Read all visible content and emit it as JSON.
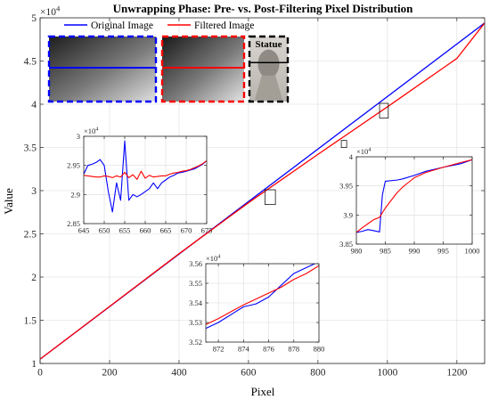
{
  "figure": {
    "title": "Unwrapping Phase: Pre- vs. Post-Filtering Pixel Distribution",
    "xlabel": "Pixel",
    "ylabel": "Value"
  },
  "chart_data": [
    {
      "id": "main",
      "type": "line",
      "title": "Unwrapping Phase: Pre- vs. Post-Filtering Pixel Distribution",
      "xlabel": "Pixel",
      "ylabel": "Value",
      "xlim": [
        0,
        1280
      ],
      "ylim": [
        10000,
        50000
      ],
      "xticks": [
        0,
        200,
        400,
        600,
        800,
        1000,
        1200
      ],
      "yticks": [
        10000,
        15000,
        20000,
        25000,
        30000,
        35000,
        40000,
        45000,
        50000
      ],
      "ytick_labels": [
        "1",
        "1.5",
        "2",
        "2.5",
        "3",
        "3.5",
        "4",
        "4.5",
        "5"
      ],
      "y_exponent": "×10^4",
      "grid": true,
      "legend": "top-left",
      "series": [
        {
          "name": "Original Image",
          "color": "#0000ff",
          "x": [
            0,
            1280
          ],
          "y": [
            10500,
            49400
          ]
        },
        {
          "name": "Filtered Image",
          "color": "#ff0000",
          "x": [
            0,
            200,
            400,
            600,
            800,
            1000,
            1200,
            1280
          ],
          "y": [
            10500,
            16600,
            22700,
            28600,
            34200,
            39700,
            45300,
            49400
          ]
        }
      ],
      "zoom_boxes": [
        {
          "xlim": [
            650,
            675
          ],
          "ylim": [
            28500,
            30000
          ]
        },
        {
          "xlim": [
            870,
            880
          ],
          "ylim": [
            35200,
            35600
          ]
        },
        {
          "xlim": [
            980,
            1000
          ],
          "ylim": [
            38500,
            40000
          ]
        }
      ],
      "images": [
        {
          "name": "original-image-thumb",
          "border": "#0000ff"
        },
        {
          "name": "filtered-image-thumb",
          "border": "#ff0000"
        },
        {
          "name": "statue-image-thumb",
          "border": "#000000",
          "label": "Statue"
        }
      ]
    },
    {
      "id": "inset1",
      "type": "line",
      "xlim": [
        645,
        675
      ],
      "ylim": [
        28500,
        30000
      ],
      "xticks": [
        645,
        650,
        655,
        660,
        665,
        670,
        675
      ],
      "yticks": [
        28500,
        29000,
        29500,
        30000
      ],
      "ytick_labels": [
        "2.85",
        "2.9",
        "2.95",
        "3"
      ],
      "y_exponent": "×10^4",
      "grid": true,
      "series": [
        {
          "name": "Original Image",
          "color": "#0000ff",
          "x": [
            645,
            646,
            647,
            648,
            649,
            650,
            651,
            652,
            653,
            654,
            655,
            656,
            657,
            658,
            659,
            660,
            661,
            662,
            663,
            664,
            665,
            666,
            667,
            668,
            669,
            670,
            671,
            672,
            673,
            674,
            675
          ],
          "y": [
            29350,
            29500,
            29520,
            29550,
            29600,
            29500,
            29050,
            28700,
            29200,
            28900,
            29920,
            28900,
            29000,
            28960,
            29000,
            29050,
            29100,
            29200,
            29100,
            29200,
            29250,
            29300,
            29330,
            29370,
            29380,
            29400,
            29420,
            29440,
            29480,
            29520,
            29580
          ]
        },
        {
          "name": "Filtered Image",
          "color": "#ff0000",
          "x": [
            645,
            646,
            647,
            648,
            649,
            650,
            651,
            652,
            653,
            654,
            655,
            656,
            657,
            658,
            659,
            660,
            661,
            662,
            663,
            664,
            665,
            666,
            667,
            668,
            669,
            670,
            671,
            672,
            673,
            674,
            675
          ],
          "y": [
            29330,
            29320,
            29310,
            29300,
            29300,
            29320,
            29310,
            29290,
            29320,
            29300,
            29380,
            29290,
            29340,
            29260,
            29400,
            29280,
            29330,
            29300,
            29310,
            29320,
            29320,
            29350,
            29370,
            29380,
            29400,
            29410,
            29430,
            29460,
            29490,
            29530,
            29580
          ]
        }
      ]
    },
    {
      "id": "inset2",
      "type": "line",
      "xlim": [
        871,
        880
      ],
      "ylim": [
        35200,
        35600
      ],
      "xticks": [
        872,
        874,
        876,
        878,
        880
      ],
      "yticks": [
        35200,
        35300,
        35400,
        35500,
        35600
      ],
      "ytick_labels": [
        "3.52",
        "3.53",
        "3.54",
        "3.55",
        "3.56"
      ],
      "y_exponent": "×10^4",
      "grid": true,
      "series": [
        {
          "name": "Original Image",
          "color": "#0000ff",
          "x": [
            871,
            872,
            873,
            874,
            875,
            876,
            877,
            878,
            879,
            880
          ],
          "y": [
            35270,
            35300,
            35340,
            35380,
            35395,
            35430,
            35490,
            35550,
            35580,
            35610
          ]
        },
        {
          "name": "Filtered Image",
          "color": "#ff0000",
          "x": [
            871,
            872,
            873,
            874,
            875,
            876,
            877,
            878,
            879,
            880
          ],
          "y": [
            35290,
            35320,
            35355,
            35390,
            35420,
            35450,
            35480,
            35520,
            35550,
            35590
          ]
        }
      ]
    },
    {
      "id": "inset3",
      "type": "line",
      "xlim": [
        980,
        1000
      ],
      "ylim": [
        38500,
        40000
      ],
      "xticks": [
        980,
        985,
        990,
        995,
        1000
      ],
      "yticks": [
        38500,
        39000,
        39500,
        40000
      ],
      "ytick_labels": [
        "3.85",
        "3.9",
        "3.95",
        "4"
      ],
      "y_exponent": "×10^4",
      "grid": true,
      "series": [
        {
          "name": "Original Image",
          "color": "#0000ff",
          "x": [
            980,
            981,
            982,
            983,
            984,
            984.5,
            985,
            987,
            988,
            990,
            992,
            995,
            998,
            1000
          ],
          "y": [
            38700,
            38720,
            38750,
            38730,
            38710,
            39350,
            39580,
            39600,
            39620,
            39680,
            39750,
            39820,
            39880,
            39950
          ]
        },
        {
          "name": "Filtered Image",
          "color": "#ff0000",
          "x": [
            980,
            981,
            982,
            983,
            984,
            985,
            986,
            987,
            988,
            989,
            990,
            992,
            995,
            998,
            1000
          ],
          "y": [
            38700,
            38780,
            38850,
            38920,
            38960,
            39120,
            39250,
            39380,
            39480,
            39560,
            39640,
            39730,
            39820,
            39900,
            39950
          ]
        }
      ]
    }
  ]
}
